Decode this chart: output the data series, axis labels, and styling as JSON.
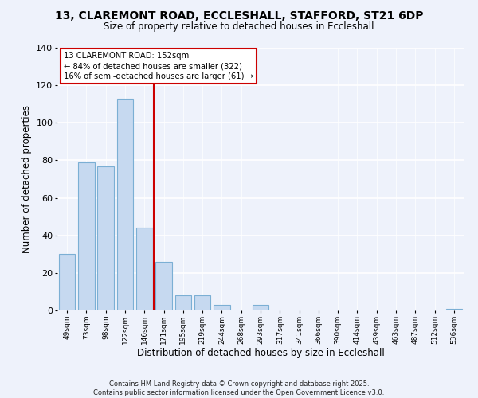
{
  "title_line1": "13, CLAREMONT ROAD, ECCLESHALL, STAFFORD, ST21 6DP",
  "title_line2": "Size of property relative to detached houses in Eccleshall",
  "xlabel": "Distribution of detached houses by size in Eccleshall",
  "ylabel": "Number of detached properties",
  "bar_labels": [
    "49sqm",
    "73sqm",
    "98sqm",
    "122sqm",
    "146sqm",
    "171sqm",
    "195sqm",
    "219sqm",
    "244sqm",
    "268sqm",
    "293sqm",
    "317sqm",
    "341sqm",
    "366sqm",
    "390sqm",
    "414sqm",
    "439sqm",
    "463sqm",
    "487sqm",
    "512sqm",
    "536sqm"
  ],
  "bar_values": [
    30,
    79,
    77,
    113,
    44,
    26,
    8,
    8,
    3,
    0,
    3,
    0,
    0,
    0,
    0,
    0,
    0,
    0,
    0,
    0,
    1
  ],
  "bar_color": "#c6d9f0",
  "bar_edge_color": "#7bafd4",
  "vline_x": 4.5,
  "vline_color": "#cc0000",
  "ylim": [
    0,
    140
  ],
  "yticks": [
    0,
    20,
    40,
    60,
    80,
    100,
    120,
    140
  ],
  "annotation_title": "13 CLAREMONT ROAD: 152sqm",
  "annotation_line1": "← 84% of detached houses are smaller (322)",
  "annotation_line2": "16% of semi-detached houses are larger (61) →",
  "footer_line1": "Contains HM Land Registry data © Crown copyright and database right 2025.",
  "footer_line2": "Contains public sector information licensed under the Open Government Licence v3.0.",
  "background_color": "#eef2fb"
}
